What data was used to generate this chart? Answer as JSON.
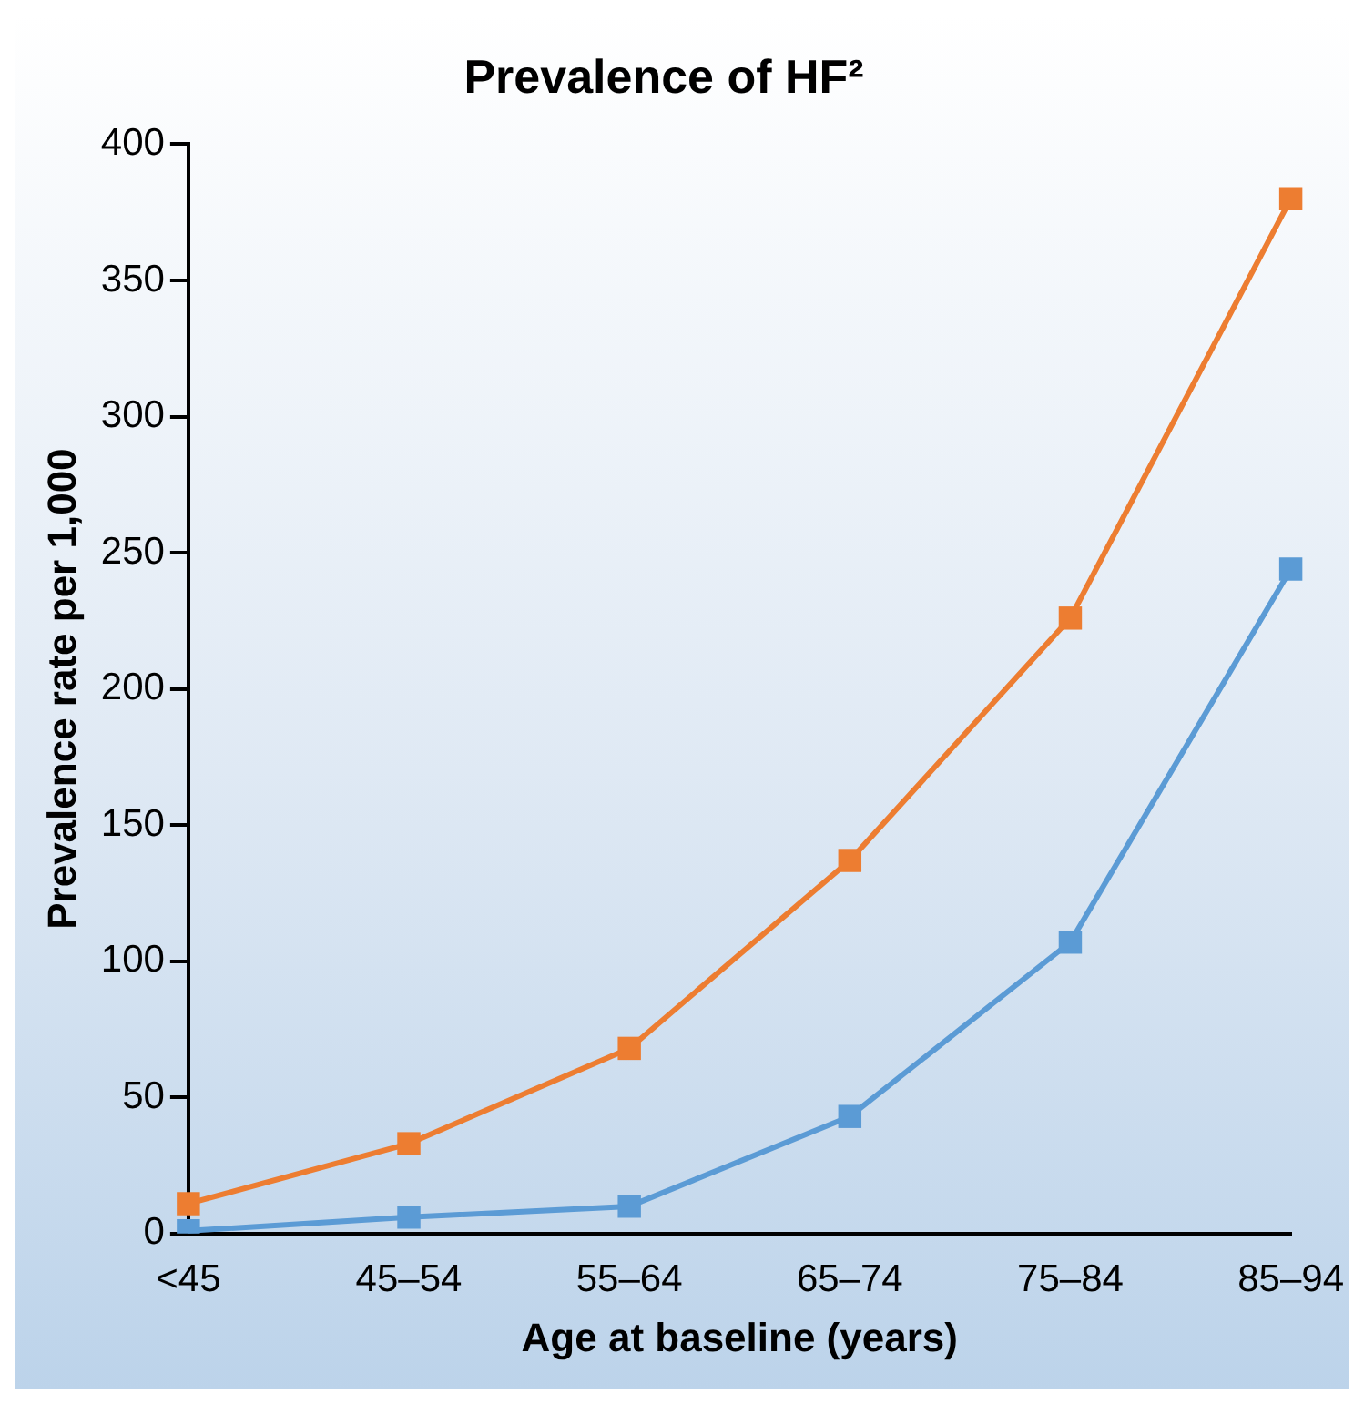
{
  "chart_data": {
    "type": "line",
    "title": "Prevalence of HF²",
    "xlabel": "Age at baseline (years)",
    "ylabel": "Prevalence rate per 1,000",
    "categories": [
      "<45",
      "45–54",
      "55–64",
      "65–74",
      "75–84",
      "85–94"
    ],
    "series": [
      {
        "color": "#ed7d31",
        "values": [
          11,
          33,
          68,
          137,
          226,
          380
        ]
      },
      {
        "color": "#5b9bd5",
        "values": [
          1,
          6,
          10,
          43,
          107,
          244
        ]
      }
    ],
    "ylim": [
      0,
      400
    ],
    "yticks": [
      0,
      50,
      100,
      150,
      200,
      250,
      300,
      350,
      400
    ],
    "grid": false,
    "legend": false,
    "marker": "square",
    "line_style": "solid"
  }
}
